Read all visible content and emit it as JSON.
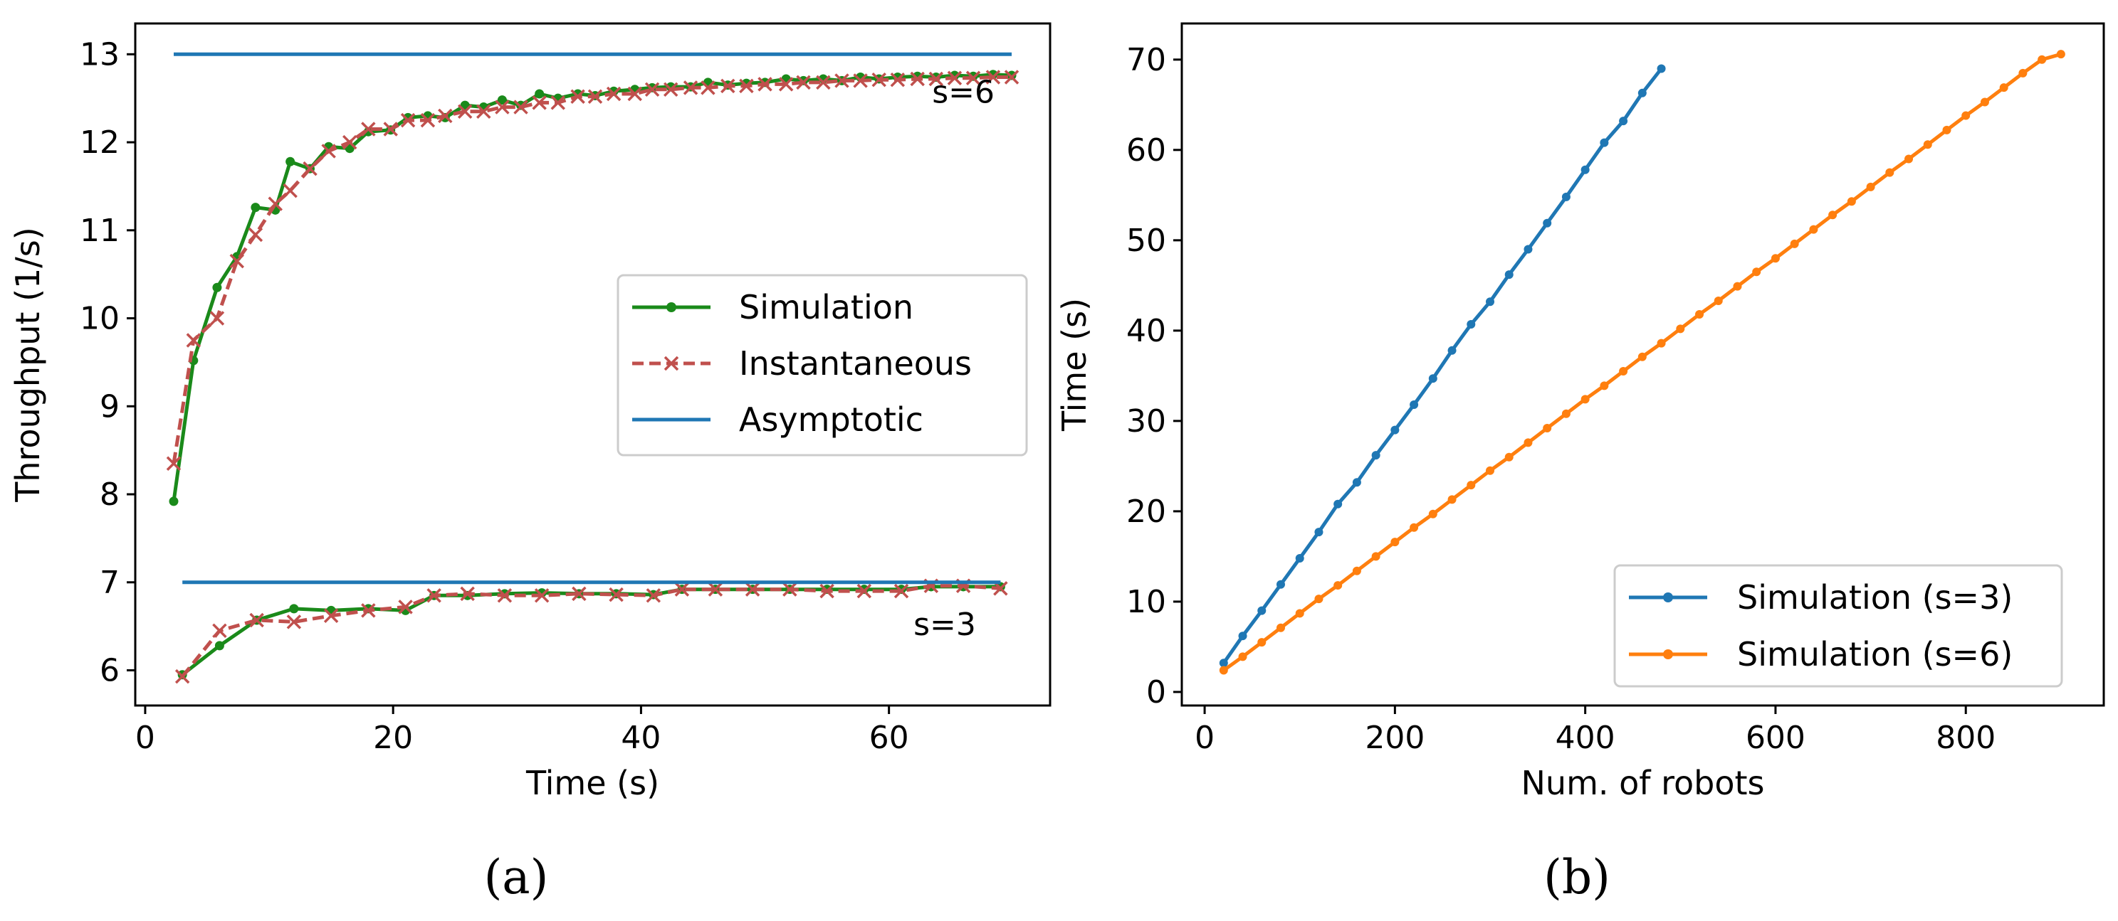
{
  "colors": {
    "simulation_green": "#1a8a1a",
    "instantaneous_red": "#c0504d",
    "asymptotic_blue": "#1f77b4",
    "blue": "#1f77b4",
    "orange": "#ff7f0e"
  },
  "chart_data": [
    {
      "panel": "(a)",
      "type": "line",
      "title": "",
      "xlabel": "Time (s)",
      "ylabel": "Throughput (1/s)",
      "xlim": [
        -0.8,
        73.0
      ],
      "ylim": [
        5.6,
        13.35
      ],
      "xticks": [
        0,
        20,
        40,
        60
      ],
      "yticks": [
        6,
        7,
        8,
        9,
        10,
        11,
        12,
        13
      ],
      "legend": {
        "location": "center-right",
        "entries": [
          "Simulation",
          "Instantaneous",
          "Asymptotic"
        ]
      },
      "annotations": [
        {
          "text": "s=6",
          "x": 66.0,
          "y": 12.45
        },
        {
          "text": "s=3",
          "x": 64.5,
          "y": 6.4
        }
      ],
      "series": [
        {
          "name": "Simulation",
          "group": "s=6",
          "style": "line-dot",
          "x": [
            2.3,
            3.9,
            5.8,
            7.4,
            8.9,
            10.5,
            11.7,
            13.3,
            14.8,
            16.5,
            18.0,
            19.8,
            21.2,
            22.8,
            24.2,
            25.8,
            27.3,
            28.8,
            30.3,
            31.8,
            33.3,
            34.9,
            36.3,
            37.8,
            39.5,
            40.9,
            42.4,
            44.0,
            45.4,
            47.0,
            48.5,
            50.0,
            51.7,
            53.1,
            54.7,
            56.2,
            57.7,
            59.2,
            60.7,
            62.3,
            63.8,
            65.3,
            66.8,
            68.4,
            69.9
          ],
          "y": [
            7.92,
            9.52,
            10.35,
            10.7,
            11.26,
            11.23,
            11.78,
            11.7,
            11.95,
            11.93,
            12.12,
            12.14,
            12.28,
            12.3,
            12.28,
            12.42,
            12.4,
            12.48,
            12.42,
            12.55,
            12.5,
            12.55,
            12.53,
            12.58,
            12.6,
            12.62,
            12.63,
            12.63,
            12.68,
            12.65,
            12.67,
            12.68,
            12.72,
            12.7,
            12.72,
            12.7,
            12.74,
            12.72,
            12.74,
            12.75,
            12.74,
            12.76,
            12.75,
            12.77,
            12.76
          ]
        },
        {
          "name": "Instantaneous",
          "group": "s=6",
          "style": "dashed-x",
          "x": [
            2.3,
            3.9,
            5.8,
            7.4,
            8.9,
            10.5,
            11.7,
            13.3,
            14.8,
            16.5,
            18.0,
            19.8,
            21.2,
            22.8,
            24.2,
            25.8,
            27.3,
            28.8,
            30.3,
            31.8,
            33.3,
            34.9,
            36.3,
            37.8,
            39.5,
            40.9,
            42.4,
            44.0,
            45.4,
            47.0,
            48.5,
            50.0,
            51.7,
            53.1,
            54.7,
            56.2,
            57.7,
            59.2,
            60.7,
            62.3,
            63.8,
            65.3,
            66.8,
            68.4,
            69.9
          ],
          "y": [
            8.35,
            9.75,
            10.0,
            10.65,
            10.95,
            11.3,
            11.45,
            11.7,
            11.9,
            12.0,
            12.15,
            12.15,
            12.25,
            12.25,
            12.3,
            12.35,
            12.35,
            12.4,
            12.4,
            12.45,
            12.45,
            12.52,
            12.52,
            12.55,
            12.55,
            12.6,
            12.6,
            12.62,
            12.62,
            12.64,
            12.64,
            12.66,
            12.66,
            12.68,
            12.68,
            12.7,
            12.7,
            12.71,
            12.71,
            12.72,
            12.72,
            12.73,
            12.73,
            12.74,
            12.74
          ]
        },
        {
          "name": "Asymptotic",
          "group": "s=6",
          "style": "solid",
          "x": [
            2.3,
            69.9
          ],
          "y": [
            13.0,
            13.0
          ]
        },
        {
          "name": "Simulation",
          "group": "s=3",
          "style": "line-dot",
          "x": [
            3.0,
            6.0,
            9.0,
            12.0,
            15.0,
            18.0,
            21.0,
            23.3,
            26.0,
            29.0,
            32.0,
            35.0,
            38.0,
            41.0,
            43.3,
            46.0,
            49.0,
            52.0,
            55.0,
            58.0,
            61.0,
            63.4,
            66.0,
            69.0
          ],
          "y": [
            5.95,
            6.28,
            6.57,
            6.7,
            6.68,
            6.7,
            6.68,
            6.85,
            6.85,
            6.87,
            6.88,
            6.87,
            6.87,
            6.86,
            6.92,
            6.92,
            6.92,
            6.92,
            6.92,
            6.92,
            6.92,
            6.95,
            6.95,
            6.95
          ]
        },
        {
          "name": "Instantaneous",
          "group": "s=3",
          "style": "dashed-x",
          "x": [
            3.0,
            6.0,
            9.0,
            12.0,
            15.0,
            18.0,
            21.0,
            23.3,
            26.0,
            29.0,
            32.0,
            35.0,
            38.0,
            41.0,
            43.3,
            46.0,
            49.0,
            52.0,
            55.0,
            58.0,
            61.0,
            63.4,
            66.0,
            69.0
          ],
          "y": [
            5.93,
            6.45,
            6.57,
            6.55,
            6.62,
            6.68,
            6.72,
            6.85,
            6.87,
            6.85,
            6.85,
            6.87,
            6.86,
            6.85,
            6.92,
            6.92,
            6.92,
            6.92,
            6.9,
            6.9,
            6.9,
            6.96,
            6.96,
            6.93
          ]
        },
        {
          "name": "Asymptotic",
          "group": "s=3",
          "style": "solid",
          "x": [
            3.0,
            69.0
          ],
          "y": [
            7.0,
            7.0
          ]
        }
      ]
    },
    {
      "panel": "(b)",
      "type": "line",
      "title": "",
      "xlabel": "Num. of robots",
      "ylabel": "Time (s)",
      "xlim": [
        -24,
        945
      ],
      "ylim": [
        -1.5,
        74
      ],
      "xticks": [
        0,
        200,
        400,
        600,
        800
      ],
      "yticks": [
        0,
        10,
        20,
        30,
        40,
        50,
        60,
        70
      ],
      "legend": {
        "location": "lower-right",
        "entries": [
          "Simulation (s=3)",
          "Simulation (s=6)"
        ]
      },
      "series": [
        {
          "name": "Simulation (s=3)",
          "x": [
            20,
            40,
            60,
            80,
            100,
            120,
            140,
            160,
            180,
            200,
            220,
            240,
            260,
            280,
            300,
            320,
            340,
            360,
            380,
            400,
            420,
            440,
            460,
            480
          ],
          "y": [
            3.2,
            6.2,
            9.0,
            11.9,
            14.8,
            17.7,
            20.8,
            23.2,
            26.2,
            29.0,
            31.8,
            34.7,
            37.8,
            40.7,
            43.2,
            46.2,
            49.0,
            51.9,
            54.8,
            57.8,
            60.8,
            63.2,
            66.3,
            69.0
          ]
        },
        {
          "name": "Simulation (s=6)",
          "x": [
            20,
            40,
            60,
            80,
            100,
            120,
            140,
            160,
            180,
            200,
            220,
            240,
            260,
            280,
            300,
            320,
            340,
            360,
            380,
            400,
            420,
            440,
            460,
            480,
            500,
            520,
            540,
            560,
            580,
            600,
            620,
            640,
            660,
            680,
            700,
            720,
            740,
            760,
            780,
            800,
            820,
            840,
            860,
            880,
            900
          ],
          "y": [
            2.4,
            3.9,
            5.5,
            7.1,
            8.7,
            10.3,
            11.8,
            13.4,
            15.0,
            16.6,
            18.2,
            19.7,
            21.3,
            22.9,
            24.5,
            26.0,
            27.6,
            29.2,
            30.8,
            32.4,
            33.9,
            35.5,
            37.1,
            38.6,
            40.2,
            41.8,
            43.3,
            44.9,
            46.5,
            48.0,
            49.6,
            51.2,
            52.8,
            54.3,
            55.9,
            57.5,
            59.0,
            60.6,
            62.2,
            63.8,
            65.3,
            66.9,
            68.5,
            70.0,
            70.6
          ]
        }
      ]
    }
  ]
}
